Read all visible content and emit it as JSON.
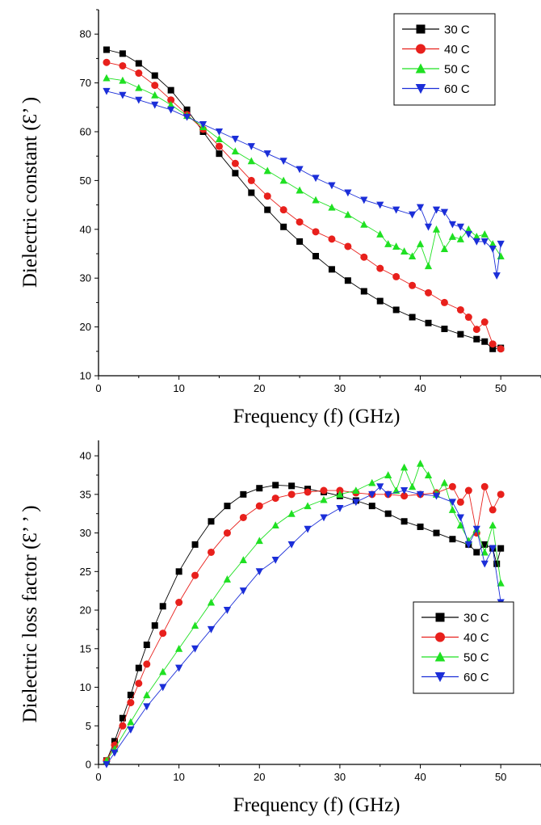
{
  "chart_data": [
    {
      "type": "line",
      "xlabel": "Frequency (f) (GHz)",
      "ylabel": "Dielectric constant (Ɛ’  )",
      "xlim": [
        0,
        55
      ],
      "ylim": [
        10,
        85
      ],
      "xticks": [
        0,
        10,
        20,
        30,
        40,
        50
      ],
      "yticks": [
        10,
        20,
        30,
        40,
        50,
        60,
        70,
        80
      ],
      "legend_position": "top-right",
      "series": [
        {
          "name": "30 C",
          "color": "#000000",
          "marker": "square",
          "x": [
            1,
            3,
            5,
            7,
            9,
            11,
            13,
            15,
            17,
            19,
            21,
            23,
            25,
            27,
            29,
            31,
            33,
            35,
            37,
            39,
            41,
            43,
            45,
            47,
            48,
            49,
            50
          ],
          "y": [
            76.8,
            76,
            74,
            71.5,
            68.5,
            64.5,
            60,
            55.5,
            51.5,
            47.5,
            44,
            40.5,
            37.5,
            34.5,
            31.8,
            29.5,
            27.3,
            25.3,
            23.5,
            22,
            20.8,
            19.6,
            18.5,
            17.5,
            17,
            15.5,
            15.7
          ]
        },
        {
          "name": "40 C",
          "color": "#e8201c",
          "marker": "circle",
          "x": [
            1,
            3,
            5,
            7,
            9,
            11,
            13,
            15,
            17,
            19,
            21,
            23,
            25,
            27,
            29,
            31,
            33,
            35,
            37,
            39,
            41,
            43,
            45,
            46,
            47,
            48,
            49,
            50
          ],
          "y": [
            74.2,
            73.5,
            72,
            69.5,
            66.5,
            63.5,
            60.5,
            57,
            53.5,
            50,
            46.8,
            44,
            41.5,
            39.5,
            38,
            36.5,
            34.3,
            32,
            30.3,
            28.5,
            27,
            25,
            23.5,
            22,
            19.5,
            21,
            16.5,
            15.5
          ]
        },
        {
          "name": "50 C",
          "color": "#1fe022",
          "marker": "triangle-up",
          "x": [
            1,
            3,
            5,
            7,
            9,
            11,
            13,
            15,
            17,
            19,
            21,
            23,
            25,
            27,
            29,
            31,
            33,
            35,
            36,
            37,
            38,
            39,
            40,
            41,
            42,
            43,
            44,
            45,
            46,
            47,
            48,
            49,
            50
          ],
          "y": [
            71,
            70.5,
            69,
            67.5,
            65.5,
            63.3,
            61,
            58.5,
            56,
            54,
            52,
            50,
            48,
            46,
            44.5,
            43,
            41,
            39,
            37,
            36.5,
            35.5,
            34.5,
            37,
            32.5,
            40,
            36,
            38.5,
            38,
            40,
            38.5,
            39,
            37,
            34.5
          ]
        },
        {
          "name": "60 C",
          "color": "#1b2ed8",
          "marker": "triangle-down",
          "x": [
            1,
            3,
            5,
            7,
            9,
            11,
            13,
            15,
            17,
            19,
            21,
            23,
            25,
            27,
            29,
            31,
            33,
            35,
            37,
            39,
            40,
            41,
            42,
            43,
            44,
            45,
            46,
            47,
            48,
            49,
            49.5,
            50
          ],
          "y": [
            68.3,
            67.5,
            66.5,
            65.5,
            64.5,
            63,
            61.5,
            60,
            58.5,
            57,
            55.5,
            54,
            52.3,
            50.5,
            49,
            47.5,
            46,
            45,
            44,
            43,
            44.5,
            40.5,
            44,
            43.5,
            41,
            40.5,
            39,
            37.5,
            37.5,
            36,
            30.5,
            37
          ]
        }
      ]
    },
    {
      "type": "line",
      "xlabel": "Frequency (f) (GHz)",
      "ylabel": "Dielectric loss factor (Ɛ’ ’ )",
      "xlim": [
        0,
        55
      ],
      "ylim": [
        0,
        42
      ],
      "xticks": [
        0,
        10,
        20,
        30,
        40,
        50
      ],
      "yticks": [
        0,
        5,
        10,
        15,
        20,
        25,
        30,
        35,
        40
      ],
      "legend_position": "right",
      "series": [
        {
          "name": "30 C",
          "color": "#000000",
          "marker": "square",
          "x": [
            1,
            2,
            3,
            4,
            5,
            6,
            7,
            8,
            10,
            12,
            14,
            16,
            18,
            20,
            22,
            24,
            26,
            28,
            30,
            32,
            34,
            36,
            38,
            40,
            42,
            44,
            46,
            47,
            48,
            49,
            49.5,
            50
          ],
          "y": [
            0.5,
            3,
            6,
            9,
            12.5,
            15.5,
            18,
            20.5,
            25,
            28.5,
            31.5,
            33.5,
            35,
            35.8,
            36.2,
            36.1,
            35.7,
            35.3,
            34.8,
            34.2,
            33.5,
            32.5,
            31.5,
            30.8,
            30,
            29.2,
            28.5,
            27.5,
            28.5,
            28,
            26,
            28
          ]
        },
        {
          "name": "40 C",
          "color": "#e8201c",
          "marker": "circle",
          "x": [
            1,
            2,
            3,
            4,
            5,
            6,
            8,
            10,
            12,
            14,
            16,
            18,
            20,
            22,
            24,
            26,
            28,
            30,
            32,
            34,
            36,
            38,
            40,
            42,
            44,
            45,
            46,
            47,
            48,
            49,
            50
          ],
          "y": [
            0.5,
            2.5,
            5,
            8,
            10.5,
            13,
            17,
            21,
            24.5,
            27.5,
            30,
            32,
            33.5,
            34.5,
            35,
            35.3,
            35.5,
            35.5,
            35.2,
            35,
            35,
            34.8,
            35,
            35.2,
            36,
            34,
            35.5,
            30,
            36,
            33,
            35
          ]
        },
        {
          "name": "50 C",
          "color": "#1fe022",
          "marker": "triangle-up",
          "x": [
            1,
            2,
            4,
            6,
            8,
            10,
            12,
            14,
            16,
            18,
            20,
            22,
            24,
            26,
            28,
            30,
            32,
            34,
            36,
            37,
            38,
            39,
            40,
            41,
            42,
            43,
            44,
            45,
            46,
            47,
            48,
            49,
            50
          ],
          "y": [
            0.5,
            2,
            5.5,
            9,
            12,
            15,
            18,
            21,
            24,
            26.5,
            29,
            31,
            32.5,
            33.5,
            34.3,
            35,
            35.5,
            36.5,
            37.5,
            35.5,
            38.5,
            36,
            39,
            37.5,
            35,
            36.5,
            33,
            31,
            29,
            30.5,
            27.5,
            31,
            23.5
          ]
        },
        {
          "name": "60 C",
          "color": "#1b2ed8",
          "marker": "triangle-down",
          "x": [
            1,
            2,
            4,
            6,
            8,
            10,
            12,
            14,
            16,
            18,
            20,
            22,
            24,
            26,
            28,
            30,
            32,
            34,
            35,
            36,
            38,
            40,
            42,
            44,
            45,
            46,
            47,
            48,
            49,
            50
          ],
          "y": [
            0,
            1.5,
            4.5,
            7.5,
            10,
            12.5,
            15,
            17.5,
            20,
            22.5,
            25,
            26.5,
            28.5,
            30.5,
            32,
            33.2,
            34,
            35,
            36,
            35,
            35.5,
            35,
            34.8,
            34,
            32,
            28.5,
            30.5,
            26,
            28,
            21
          ]
        }
      ]
    }
  ]
}
